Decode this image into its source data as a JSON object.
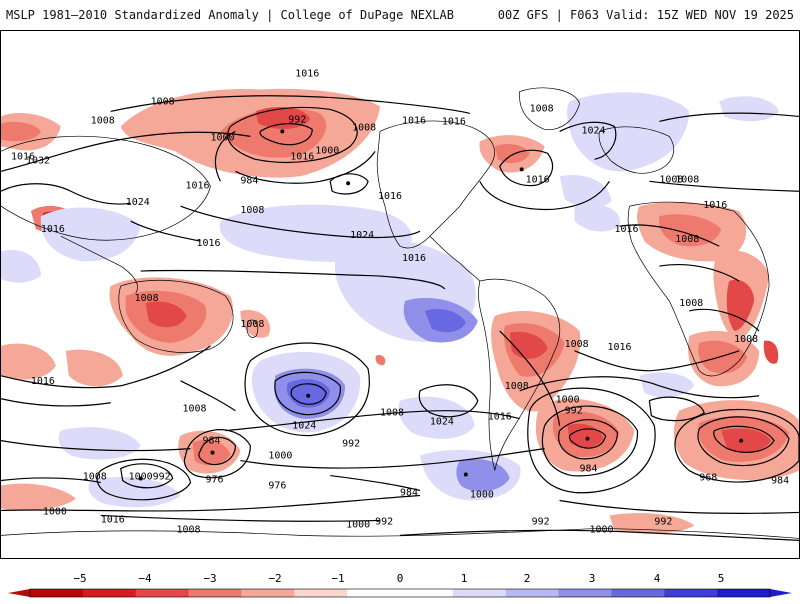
{
  "header": {
    "title": "MSLP 1981–2010 Standardized Anomaly | College of DuPage NEXLAB",
    "run_info": "00Z GFS | F063 Valid: 15Z WED NOV 19 2025"
  },
  "colors": {
    "background": "#ffffff",
    "land_outline": "#000000",
    "isobar": "#000000"
  },
  "colorbar": {
    "ticks": [
      "−5",
      "−4",
      "−3",
      "−2",
      "−1",
      "0",
      "1",
      "2",
      "3",
      "4",
      "5"
    ],
    "colors": [
      "#b40a0a",
      "#d21e1e",
      "#e34848",
      "#ee7a6e",
      "#f6a898",
      "#fbd6cc",
      "#ffffff",
      "#ffffff",
      "#dcdcfa",
      "#b8b8f2",
      "#9090ea",
      "#6868e2",
      "#3e3ed6",
      "#1e1ec8"
    ]
  },
  "isobar_labels": [
    "1016",
    "1016",
    "1008",
    "1008",
    "992",
    "1008",
    "1008",
    "1016",
    "1008",
    "1000",
    "1032",
    "1016",
    "1016",
    "984",
    "1016",
    "1000",
    "1024",
    "1016",
    "1016",
    "1024",
    "1016",
    "1008",
    "1024",
    "1008",
    "1016",
    "1016",
    "1008",
    "1016",
    "1008",
    "1008",
    "1016",
    "1008",
    "1016",
    "1008",
    "1008",
    "1000",
    "992",
    "1016",
    "1024",
    "1024",
    "1008",
    "1000",
    "992",
    "984",
    "984",
    "976",
    "976",
    "1008",
    "1000",
    "992",
    "1000",
    "984",
    "1016",
    "1008",
    "1000",
    "1000",
    "992",
    "992",
    "1000",
    "968",
    "984",
    "1016",
    "1008",
    "992",
    "1008"
  ]
}
